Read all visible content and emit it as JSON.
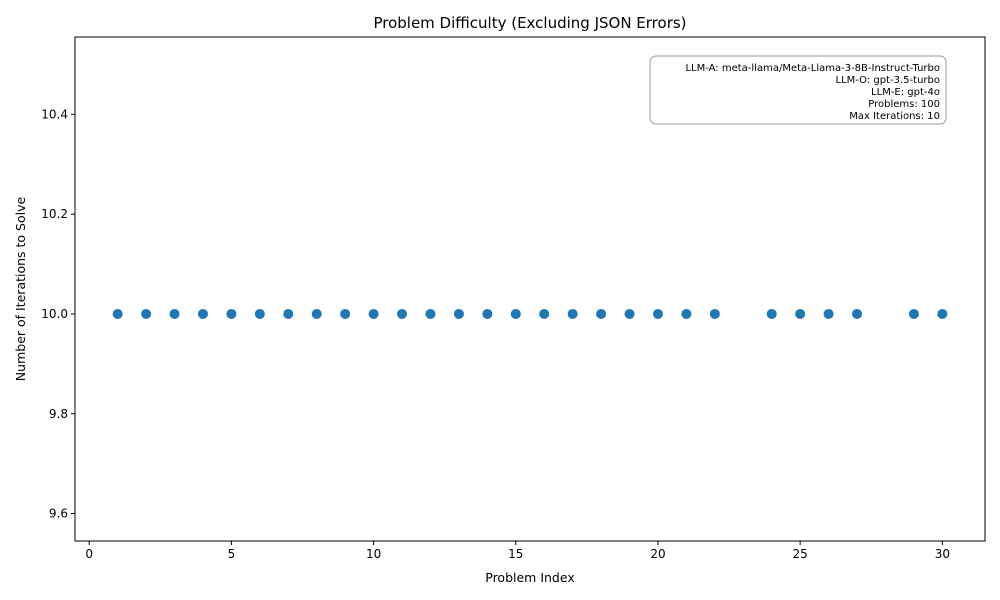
{
  "chart_data": {
    "type": "scatter",
    "title": "Problem Difficulty (Excluding JSON Errors)",
    "xlabel": "Problem Index",
    "ylabel": "Number of Iterations to Solve",
    "xlim": [
      -0.5,
      31.5
    ],
    "ylim": [
      9.545,
      10.555
    ],
    "xticks": [
      0,
      5,
      10,
      15,
      20,
      25,
      30
    ],
    "yticks": [
      9.6,
      9.8,
      10.0,
      10.2,
      10.4
    ],
    "ytick_labels": [
      "9.6",
      "9.8",
      "10.0",
      "10.2",
      "10.4"
    ],
    "grid": false,
    "point_color": "#1f77b4",
    "x": [
      1,
      2,
      3,
      4,
      5,
      6,
      7,
      8,
      9,
      10,
      11,
      12,
      13,
      14,
      15,
      16,
      17,
      18,
      19,
      20,
      21,
      22,
      24,
      25,
      26,
      27,
      29,
      30
    ],
    "y": [
      10,
      10,
      10,
      10,
      10,
      10,
      10,
      10,
      10,
      10,
      10,
      10,
      10,
      10,
      10,
      10,
      10,
      10,
      10,
      10,
      10,
      10,
      10,
      10,
      10,
      10,
      10,
      10
    ],
    "info_box": {
      "position": "top-right",
      "lines": [
        "LLM-A: meta-llama/Meta-Llama-3-8B-Instruct-Turbo",
        "LLM-O: gpt-3.5-turbo",
        "LLM-E: gpt-4o",
        "Problems: 100",
        "Max Iterations: 10"
      ]
    }
  }
}
